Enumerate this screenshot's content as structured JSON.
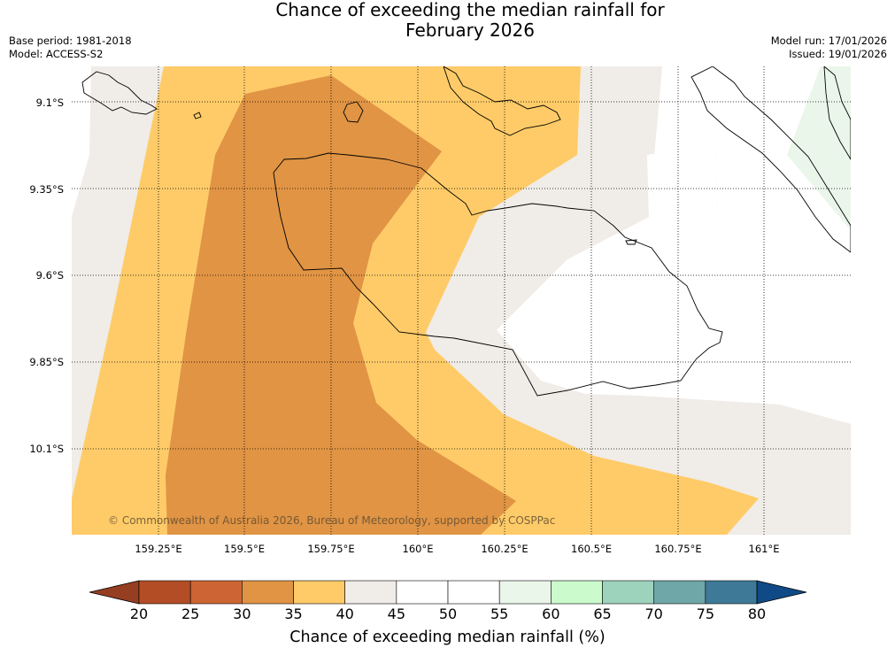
{
  "title": {
    "line1": "Chance of exceeding the median rainfall for",
    "line2": "February 2026"
  },
  "meta": {
    "base_period": "Base period: 1981-2018",
    "model": "Model: ACCESS-S2",
    "model_run": "Model run: 17/01/2026",
    "issued": "Issued: 19/01/2026"
  },
  "map": {
    "lat_ticks": [
      "9.1°S",
      "9.35°S",
      "9.6°S",
      "9.85°S",
      "10.1°S"
    ],
    "lon_ticks": [
      "159.25°E",
      "159.5°E",
      "159.75°E",
      "160°E",
      "160.25°E",
      "160.5°E",
      "160.75°E",
      "161°E"
    ],
    "copyright": "© Commonwealth of Australia 2026, Bureau of Meteorology, supported by COSPPac",
    "gridlines": "dotted",
    "coastline_color": "#000000"
  },
  "colorbar": {
    "title": "Chance of exceeding median rainfall (%)",
    "labels": [
      "20",
      "25",
      "30",
      "35",
      "40",
      "45",
      "50",
      "55",
      "60",
      "65",
      "70",
      "75",
      "80"
    ],
    "colors": [
      "#b34d25",
      "#cc6533",
      "#e09444",
      "#fecb68",
      "#f0ece7",
      "#ffffff",
      "#ffffff",
      "#ebf6eb",
      "#cbfacc",
      "#9dd3bd",
      "#6fa7a8",
      "#3e7a97"
    ],
    "under_color": "#963e22",
    "over_color": "#0f4a86"
  }
}
